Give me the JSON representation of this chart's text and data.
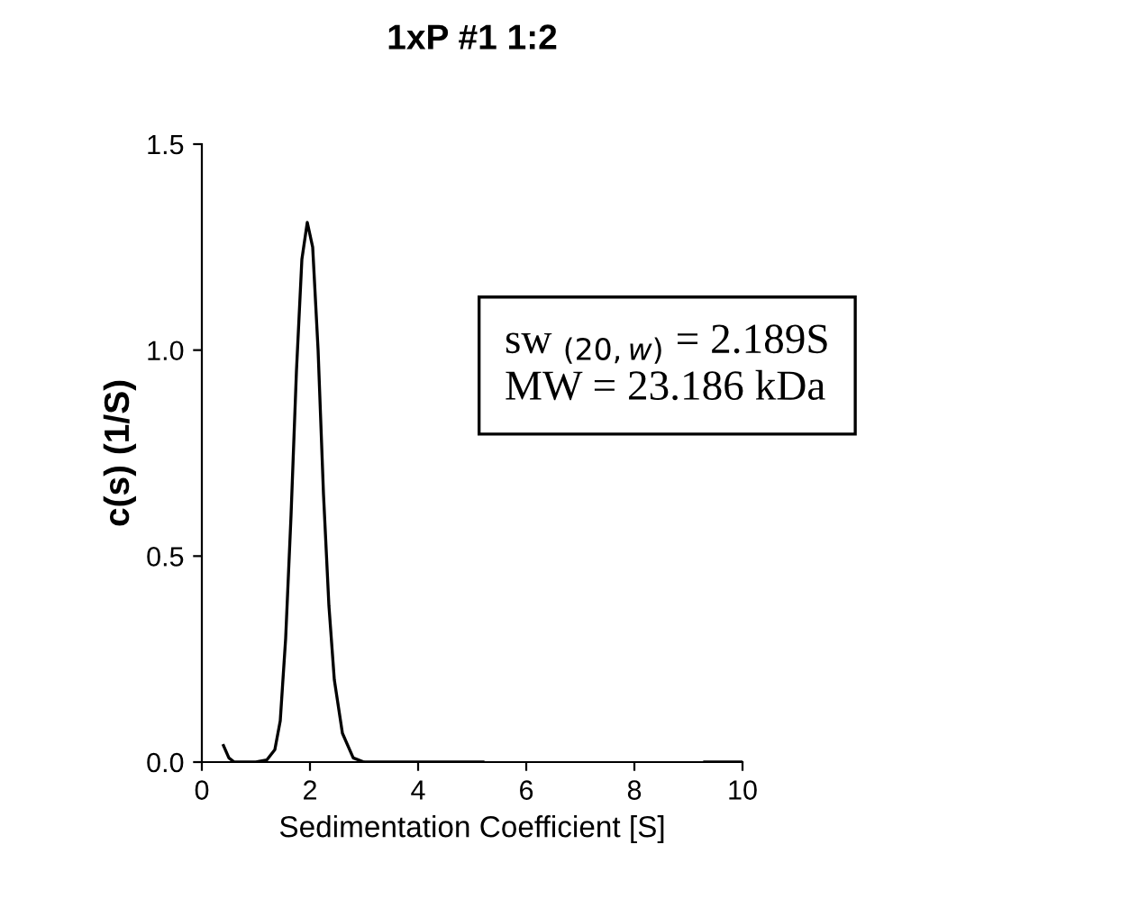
{
  "chart_data": {
    "type": "line",
    "title": "1xP #1 1:2",
    "xlabel": "Sedimentation Coefficient [S]",
    "ylabel": "c(s) (1/S)",
    "x": [
      0.4,
      0.5,
      0.6,
      1.0,
      1.2,
      1.35,
      1.45,
      1.55,
      1.65,
      1.75,
      1.85,
      1.95,
      2.05,
      2.15,
      2.25,
      2.35,
      2.45,
      2.6,
      2.8,
      3.0,
      5.2,
      5.3,
      9.3,
      10.0
    ],
    "series": [
      {
        "color": "#000000",
        "values": [
          0.04,
          0.01,
          0,
          0,
          0.005,
          0.03,
          0.1,
          0.3,
          0.6,
          0.95,
          1.22,
          1.31,
          1.25,
          1.0,
          0.65,
          0.38,
          0.2,
          0.07,
          0.01,
          0,
          0,
          null,
          0,
          0
        ]
      }
    ],
    "xlim": [
      0,
      10
    ],
    "ylim": [
      0,
      1.5
    ],
    "xticks": [
      0,
      2,
      4,
      6,
      8,
      10
    ],
    "yticks": [
      {
        "value": 0,
        "label": "0.0"
      },
      {
        "value": 0.5,
        "label": "0.5"
      },
      {
        "value": 1.0,
        "label": "1.0"
      },
      {
        "value": 1.5,
        "label": "1.5"
      }
    ],
    "annotations": [
      "sw $_{(20,w)}$ = 2.189S\nMW = 23.186 kDa"
    ],
    "grid": false,
    "legend": false
  }
}
